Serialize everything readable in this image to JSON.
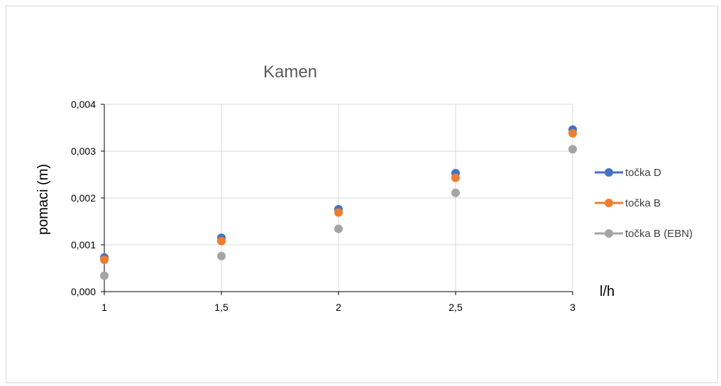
{
  "chart_data": {
    "type": "scatter",
    "title": "Kamen",
    "xlabel": "l/h",
    "ylabel": "pomaci (m)",
    "x": [
      1,
      1.5,
      2,
      2.5,
      3
    ],
    "x_tick_labels": [
      "1",
      "1,5",
      "2",
      "2,5",
      "3"
    ],
    "y_tick_labels": [
      "0,000",
      "0,001",
      "0,002",
      "0,003",
      "0,004"
    ],
    "y_ticks": [
      0,
      0.001,
      0.002,
      0.003,
      0.004
    ],
    "xlim": [
      1,
      3
    ],
    "ylim": [
      0,
      0.004
    ],
    "grid": true,
    "legend_position": "right",
    "series": [
      {
        "name": "točka D",
        "color": "#4472c4",
        "values": [
          0.00073,
          0.00115,
          0.00176,
          0.00253,
          0.00346
        ]
      },
      {
        "name": "točka B",
        "color": "#ed7d31",
        "values": [
          0.00068,
          0.00108,
          0.00169,
          0.00243,
          0.00338
        ]
      },
      {
        "name": "točka B (EBN)",
        "color": "#a5a5a5",
        "values": [
          0.00034,
          0.00076,
          0.00134,
          0.00211,
          0.00304
        ]
      }
    ]
  }
}
